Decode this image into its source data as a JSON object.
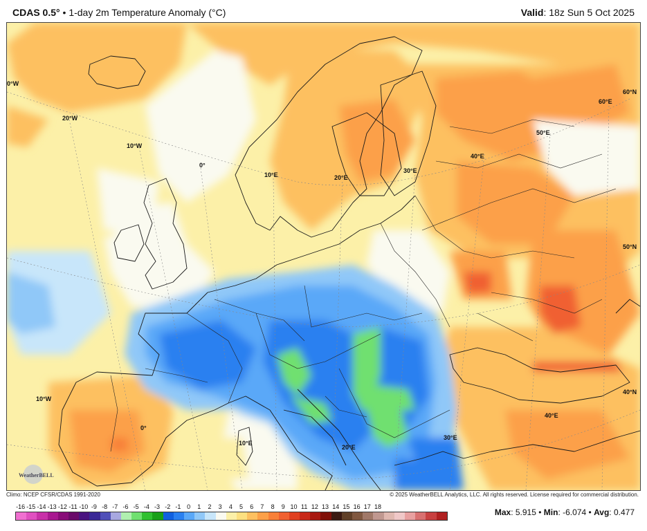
{
  "header": {
    "model": "CDAS 0.5°",
    "separator": "•",
    "product": "1-day 2m Temperature Anomaly (°C)",
    "valid_label": "Valid",
    "valid_time": ": 18z Sun 5 Oct 2025"
  },
  "map": {
    "grid_labels": [
      "0°W",
      "20°W",
      "10°W",
      "0°",
      "10°E",
      "20°E",
      "30°E",
      "40°E",
      "50°E",
      "60°E",
      "60°N",
      "50°N",
      "40°N",
      "10°W",
      "0°",
      "10°E",
      "20°E",
      "30°E",
      "40°E"
    ],
    "logo": "WeatherBELL"
  },
  "footer": {
    "climo": "Climo: NCEP CFSR/CDAS 1991-2020",
    "copyright": "© 2025 WeatherBELL Analytics, LLC. All rights reserved. License required for commercial distribution."
  },
  "colorbar": {
    "labels": [
      "-16",
      "-15",
      "-14",
      "-13",
      "-12",
      "-11",
      "-10",
      "-9",
      "-8",
      "-7",
      "-6",
      "-5",
      "-4",
      "-3",
      "-2",
      "-1",
      "0",
      "1",
      "2",
      "3",
      "4",
      "5",
      "6",
      "7",
      "8",
      "9",
      "10",
      "11",
      "12",
      "13",
      "14",
      "15",
      "16",
      "17",
      "18"
    ],
    "colors": [
      "#f070d0",
      "#e050c0",
      "#c830a8",
      "#a81890",
      "#880c78",
      "#6a0a6a",
      "#4a1480",
      "#3a2896",
      "#5050b8",
      "#a8a8e0",
      "#b0f0b0",
      "#70e070",
      "#30c030",
      "#18a018",
      "#1060e0",
      "#2a80f0",
      "#5aa8f8",
      "#90c8f8",
      "#c8e6fa",
      "#fafaf0",
      "#fcf0a8",
      "#fde080",
      "#fdc060",
      "#fca048",
      "#f88038",
      "#f06030",
      "#e04020",
      "#c82818",
      "#a81810",
      "#801008",
      "#3a1a12",
      "#604028",
      "#805840",
      "#a07868",
      "#c09890",
      "#e0b8b0",
      "#f0c8c8",
      "#e8a0a0",
      "#d87070",
      "#c84040",
      "#b02020"
    ]
  },
  "stats": {
    "max_label": "Max",
    "max_value": ": 5.915",
    "min_label": "Min",
    "min_value": ": -6.074",
    "avg_label": "Avg",
    "avg_value": ": 0.477",
    "sep": "•"
  }
}
